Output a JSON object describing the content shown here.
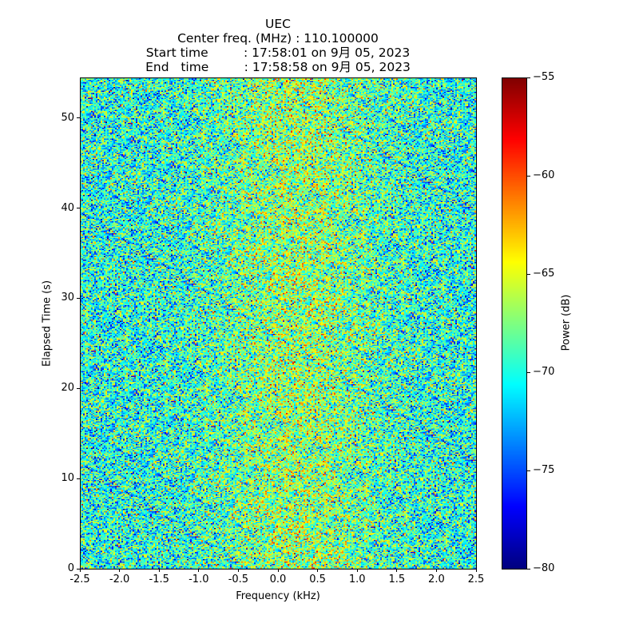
{
  "title_lines": [
    "UEC",
    "Center freq. (MHz) : 110.100000",
    "Start time         : 17:58:01 on 9月 05, 2023",
    "End   time         : 17:58:58 on 9月 05, 2023"
  ],
  "chart_data": {
    "type": "heatmap",
    "title": "UEC / Center freq. (MHz) : 110.100000",
    "xlabel": "Frequency (kHz)",
    "ylabel": "Elapsed Time (s)",
    "xlim": [
      -2.5,
      2.5
    ],
    "ylim": [
      0,
      54.5
    ],
    "xticks": [
      "-2.5",
      "-2.0",
      "-1.5",
      "-1.0",
      "-0.5",
      "0.0",
      "0.5",
      "1.0",
      "1.5",
      "2.0",
      "2.5"
    ],
    "xtick_values": [
      -2.5,
      -2.0,
      -1.5,
      -1.0,
      -0.5,
      0.0,
      0.5,
      1.0,
      1.5,
      2.0,
      2.5
    ],
    "yticks": [
      "0",
      "10",
      "20",
      "30",
      "40",
      "50"
    ],
    "ytick_values": [
      0,
      10,
      20,
      30,
      40,
      50
    ],
    "colormap": "jet",
    "colorbar": {
      "label": "Power (dB)",
      "range": [
        -80,
        -55
      ],
      "ticks": [
        "−55",
        "−60",
        "−65",
        "−70",
        "−75",
        "−80"
      ],
      "tick_values": [
        -55,
        -60,
        -65,
        -70,
        -75,
        -80
      ]
    },
    "description_of_values": {
      "noise_floor_mean_db": -70,
      "center_band_mean_db": -67,
      "center_band_khz": [
        -1.0,
        1.5
      ],
      "noise_std_db": 3.5
    },
    "grid": false
  }
}
